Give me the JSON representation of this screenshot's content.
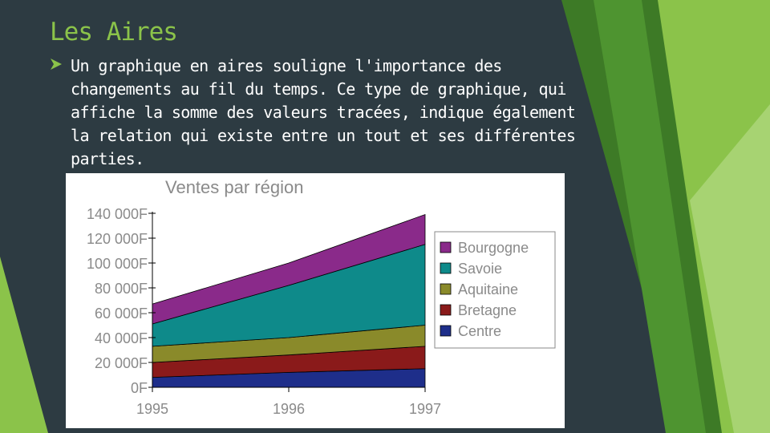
{
  "slide": {
    "title": "Les Aires",
    "bullet_icon": "arrow-right-icon",
    "body": "Un graphique en aires souligne l'importance des changements au fil du temps. Ce type de graphique, qui affiche la somme des valeurs tracées, indique également la relation qui existe entre un tout et ses différentes parties."
  },
  "colors": {
    "background": "#2d3b42",
    "accent": "#8bc34a"
  },
  "chart_data": {
    "type": "area",
    "stacked": true,
    "title": "Ventes par région",
    "x": [
      "1995",
      "1996",
      "1997"
    ],
    "ylim": [
      0,
      140000
    ],
    "yticks": [
      0,
      20000,
      40000,
      60000,
      80000,
      100000,
      120000,
      140000
    ],
    "ytick_labels": [
      "0F",
      "20 000F",
      "40 000F",
      "60 000F",
      "80 000F",
      "100 000F",
      "120 000F",
      "140 000F"
    ],
    "legend_position": "right",
    "series": [
      {
        "name": "Centre",
        "color": "#1e2e8a",
        "values": [
          8000,
          12000,
          15000
        ]
      },
      {
        "name": "Bretagne",
        "color": "#8a1a1a",
        "values": [
          12000,
          14000,
          18000
        ]
      },
      {
        "name": "Aquitaine",
        "color": "#8a8a2a",
        "values": [
          13000,
          14000,
          17000
        ]
      },
      {
        "name": "Savoie",
        "color": "#0e8a8a",
        "values": [
          18000,
          42000,
          65000
        ]
      },
      {
        "name": "Bourgogne",
        "color": "#8a2a8a",
        "values": [
          16000,
          18000,
          24000
        ]
      }
    ]
  }
}
